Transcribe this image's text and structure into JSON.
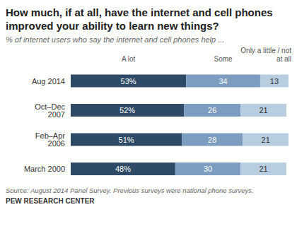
{
  "chart_data": {
    "type": "bar",
    "orientation": "horizontal",
    "stacked": true,
    "data_labels": true,
    "tick_labels": "y",
    "title": "How much, if at all, have the internet and cell phones improved your ability to learn new things?",
    "subtitle": "% of internet users who say the internet and cell phones help ...",
    "source": "Source: August 2014 Panel Survey. Previous surveys were national phone surveys.",
    "credit": "PEW RESEARCH CENTER",
    "categories": [
      "Aug 2014",
      "Oct–Dec 2007",
      "Feb–Apr 2006",
      "March 2000"
    ],
    "xlim": [
      0,
      100
    ],
    "series": [
      {
        "name": "A lot",
        "color": "#2e4a66",
        "values": [
          53,
          52,
          51,
          48
        ],
        "value_labels": [
          "53%",
          "52%",
          "51%",
          "48%"
        ]
      },
      {
        "name": "Some",
        "color": "#7c9dbf",
        "values": [
          34,
          26,
          28,
          30
        ]
      },
      {
        "name": "Only a little / not at all",
        "color": "#b9cde1",
        "values": [
          13,
          21,
          21,
          21
        ]
      }
    ]
  }
}
